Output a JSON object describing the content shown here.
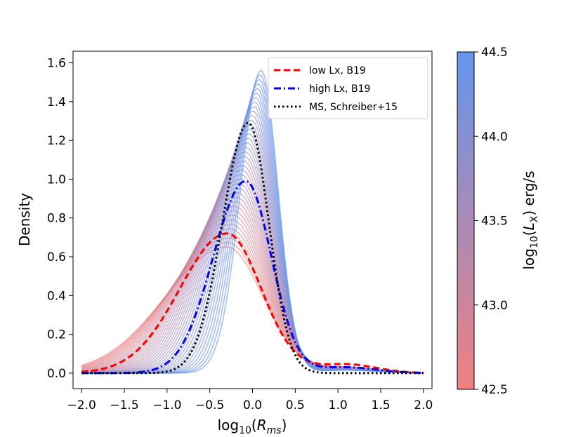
{
  "chart_data": {
    "type": "line",
    "xlabel": "log10(Rms)",
    "ylabel": "Density",
    "xlim": [
      -2.1,
      2.1
    ],
    "ylim": [
      -0.08,
      1.66
    ],
    "xticks": [
      -2.0,
      -1.5,
      -1.0,
      -0.5,
      0.0,
      0.5,
      1.0,
      1.5,
      2.0
    ],
    "xtick_labels": [
      "−2.0",
      "−1.5",
      "−1.0",
      "−0.5",
      "0.0",
      "0.5",
      "1.0",
      "1.5",
      "2.0"
    ],
    "yticks": [
      0.0,
      0.2,
      0.4,
      0.6,
      0.8,
      1.0,
      1.2,
      1.4,
      1.6
    ],
    "ytick_labels": [
      "0.0",
      "0.2",
      "0.4",
      "0.6",
      "0.8",
      "1.0",
      "1.2",
      "1.4",
      "1.6"
    ],
    "background_family": {
      "description_count": 40,
      "lx_range": [
        42.5,
        44.5
      ],
      "low_peak": {
        "x": -0.3,
        "y": 0.65,
        "sigma_left": 0.72,
        "sigma_right": 0.42
      },
      "high_peak": {
        "x": 0.1,
        "y": 1.56,
        "sigma_left": 0.24,
        "sigma_right": 0.2
      },
      "tail_amplitude": 0.03,
      "tail_center": 1.1,
      "tail_sigma": 0.35
    },
    "series": [
      {
        "name": "low Lx, B19",
        "style": "dashed",
        "color": "#ff0000",
        "peak_x": -0.3,
        "peak_y": 0.72,
        "sigma_left": 0.55,
        "sigma_right": 0.4,
        "tail_amplitude": 0.045
      },
      {
        "name": "high Lx, B19",
        "style": "dashdot",
        "color": "#0000ff",
        "peak_x": -0.08,
        "peak_y": 0.99,
        "sigma_left": 0.38,
        "sigma_right": 0.3,
        "tail_amplitude": 0.03
      },
      {
        "name": "MS, Schreiber+15",
        "style": "dotted",
        "color": "#000000",
        "peak_x": -0.05,
        "peak_y": 1.29,
        "sigma_left": 0.3,
        "sigma_right": 0.24,
        "tail_amplitude": 0.0
      }
    ],
    "colorbar": {
      "label": "log10(LX) erg/s",
      "range": [
        42.5,
        44.5
      ],
      "ticks": [
        42.5,
        43.0,
        43.5,
        44.0,
        44.5
      ],
      "tick_labels": [
        "42.5",
        "43.0",
        "43.5",
        "44.0",
        "44.5"
      ],
      "color_low": "#f08080",
      "color_high": "#6495ed"
    }
  },
  "labels": {
    "x_prefix": "log",
    "x_sub": "10",
    "x_var": "R",
    "x_var_sub": "ms",
    "cb_prefix": "log",
    "cb_sub": "10",
    "cb_var": "L",
    "cb_var_sub": "X",
    "cb_unit": " erg/s"
  }
}
